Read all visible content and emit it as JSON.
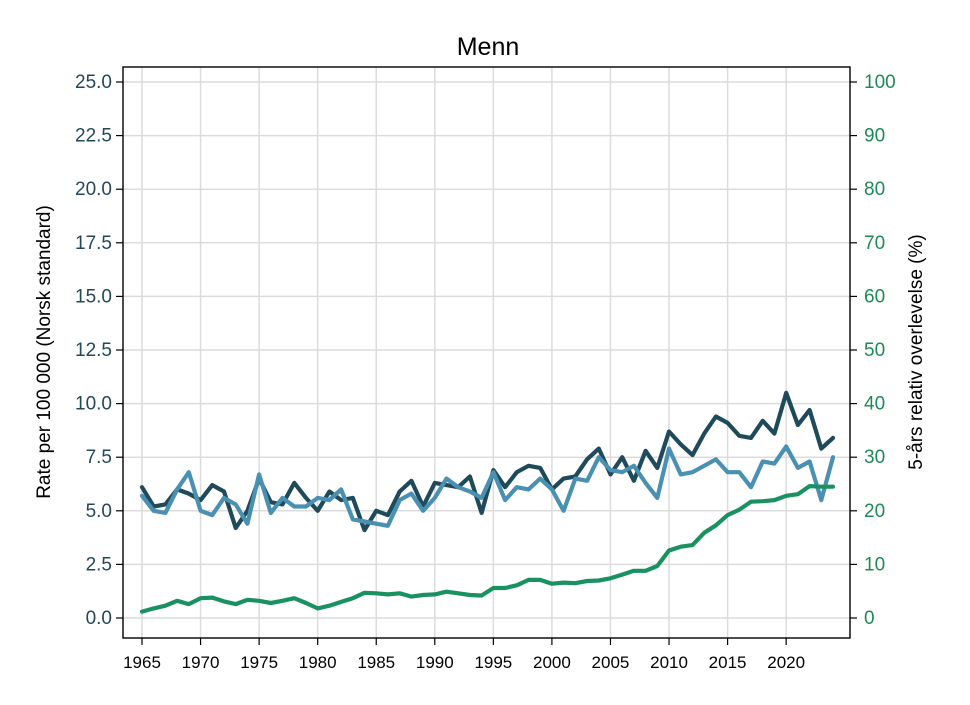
{
  "chart_data": {
    "type": "line",
    "title": "Menn",
    "ylabel": "Rate per 100 000 (Norsk standard)",
    "y2label": "5-års relativ overlevelse (%)",
    "ylim": [
      0,
      25
    ],
    "y2lim": [
      0,
      100
    ],
    "xlim": [
      1965,
      2024
    ],
    "y_ticks": [
      "0.0",
      "2.5",
      "5.0",
      "7.5",
      "10.0",
      "12.5",
      "15.0",
      "17.5",
      "20.0",
      "22.5",
      "25.0"
    ],
    "y2_ticks": [
      "0",
      "10",
      "20",
      "30",
      "40",
      "50",
      "60",
      "70",
      "80",
      "90",
      "100"
    ],
    "x_ticks": [
      "1965",
      "1970",
      "1975",
      "1980",
      "1985",
      "1990",
      "1995",
      "2000",
      "2005",
      "2010",
      "2015",
      "2020"
    ],
    "grid": true,
    "x": [
      1965,
      1966,
      1967,
      1968,
      1969,
      1970,
      1971,
      1972,
      1973,
      1974,
      1975,
      1976,
      1977,
      1978,
      1979,
      1980,
      1981,
      1982,
      1983,
      1984,
      1985,
      1986,
      1987,
      1988,
      1989,
      1990,
      1991,
      1992,
      1993,
      1994,
      1995,
      1996,
      1997,
      1998,
      1999,
      2000,
      2001,
      2002,
      2003,
      2004,
      2005,
      2006,
      2007,
      2008,
      2009,
      2010,
      2011,
      2012,
      2013,
      2014,
      2015,
      2016,
      2017,
      2018,
      2019,
      2020,
      2021,
      2022,
      2023,
      2024
    ],
    "series": [
      {
        "color": "#1f4a5c",
        "axis": "left",
        "values": [
          6.1,
          5.2,
          5.3,
          6.0,
          5.8,
          5.5,
          6.2,
          5.9,
          4.2,
          5.0,
          6.5,
          5.4,
          5.3,
          6.3,
          5.6,
          5.0,
          5.9,
          5.5,
          5.6,
          4.1,
          5.0,
          4.8,
          5.9,
          6.4,
          5.2,
          6.3,
          6.2,
          6.1,
          6.6,
          4.9,
          6.9,
          6.1,
          6.8,
          7.1,
          7.0,
          6.0,
          6.5,
          6.6,
          7.4,
          7.9,
          6.7,
          7.5,
          6.4,
          7.8,
          7.0,
          8.7,
          8.1,
          7.6,
          8.6,
          9.4,
          9.1,
          8.5,
          8.4,
          9.2,
          8.6,
          10.5,
          9.0,
          9.7,
          7.9,
          8.4
        ]
      },
      {
        "color": "#4a90b2",
        "axis": "left",
        "values": [
          5.7,
          5.0,
          4.9,
          6.0,
          6.8,
          5.0,
          4.8,
          5.6,
          5.3,
          4.4,
          6.7,
          4.9,
          5.6,
          5.2,
          5.2,
          5.6,
          5.5,
          6.0,
          4.6,
          4.5,
          4.4,
          4.3,
          5.5,
          5.8,
          5.0,
          5.6,
          6.5,
          6.1,
          5.9,
          5.6,
          6.8,
          5.5,
          6.1,
          6.0,
          6.5,
          6.0,
          5.0,
          6.5,
          6.4,
          7.5,
          6.9,
          6.8,
          7.1,
          6.3,
          5.6,
          7.9,
          6.7,
          6.8,
          7.1,
          7.4,
          6.8,
          6.8,
          6.1,
          7.3,
          7.2,
          8.0,
          7.0,
          7.3,
          5.5,
          7.5
        ]
      },
      {
        "color": "#1a9160",
        "axis": "right",
        "values": [
          1.2,
          1.8,
          2.3,
          3.2,
          2.6,
          3.7,
          3.8,
          3.1,
          2.6,
          3.4,
          3.2,
          2.8,
          3.2,
          3.7,
          2.8,
          1.8,
          2.3,
          3.0,
          3.7,
          4.7,
          4.6,
          4.4,
          4.6,
          4.0,
          4.3,
          4.4,
          4.9,
          4.6,
          4.3,
          4.2,
          5.6,
          5.6,
          6.1,
          7.1,
          7.1,
          6.4,
          6.6,
          6.5,
          6.9,
          7.0,
          7.4,
          8.1,
          8.8,
          8.8,
          9.7,
          12.6,
          13.3,
          13.6,
          15.9,
          17.3,
          19.2,
          20.2,
          21.7,
          21.8,
          22.0,
          22.8,
          23.1,
          24.6,
          24.5,
          24.5
        ]
      }
    ]
  }
}
